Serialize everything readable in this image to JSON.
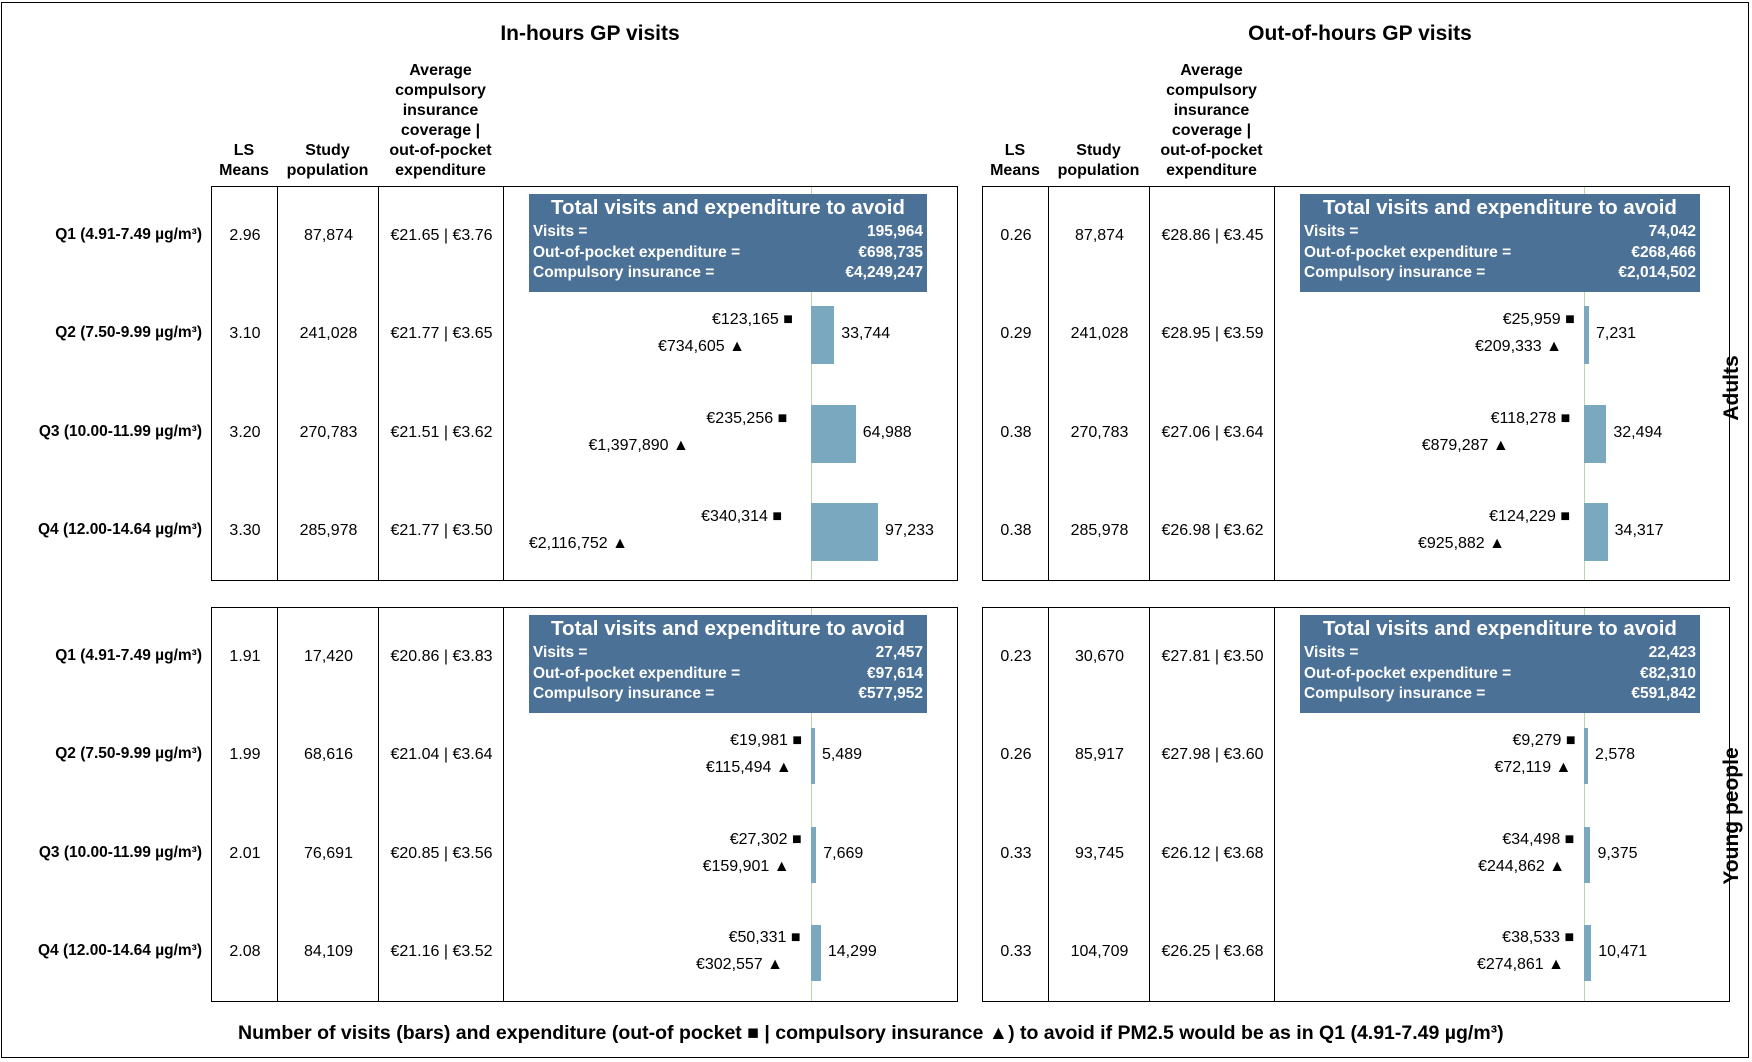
{
  "panels_title": {
    "in_hours": "In-hours GP visits",
    "out_hours": "Out-of-hours GP visits"
  },
  "column_headers": {
    "ls_means": [
      "LS",
      "Means"
    ],
    "study_population": [
      "Study",
      "population"
    ],
    "avg_cost": [
      "Average",
      "compulsory",
      "insurance",
      "coverage |",
      "out-of-pocket",
      "expenditure"
    ]
  },
  "groups": [
    {
      "key": "adults",
      "label": "Adults"
    },
    {
      "key": "young",
      "label": "Young people"
    }
  ],
  "quartiles": [
    "Q1 (4.91-7.49 µg/m³)",
    "Q2 (7.50-9.99 µg/m³)",
    "Q3 (10.00-11.99 µg/m³)",
    "Q4 (12.00-14.64 µg/m³)"
  ],
  "total_box": {
    "heading": "Total visits and expenditure to avoid",
    "visits_label": "Visits =",
    "oop_label": "Out-of-pocket expenditure =",
    "ins_label": "Compulsory insurance ="
  },
  "symbols": {
    "square": "■",
    "triangle": "▲"
  },
  "colors": {
    "bar": "#7aa9bf",
    "box": "#4c7197",
    "zero_line": "#b6d7a8"
  },
  "x_axis_label": "Number of visits (bars) and expenditure (out-of pocket ■ | compulsory insurance ▲) to avoid if PM2.5 would be as in Q1 (4.91-7.49 µg/m³)",
  "chart_data": [
    {
      "type": "bar",
      "panel": "In-hours GP visits",
      "group": "Adults",
      "categories": [
        "Q1 (4.91-7.49 µg/m³)",
        "Q2 (7.50-9.99 µg/m³)",
        "Q3 (10.00-11.99 µg/m³)",
        "Q4 (12.00-14.64 µg/m³)"
      ],
      "ls_means": [
        "2.96",
        "3.10",
        "3.20",
        "3.30"
      ],
      "study_population": [
        "87,874",
        "241,028",
        "270,783",
        "285,978"
      ],
      "avg_cost": [
        "€21.65 | €3.76",
        "€21.77 | €3.65",
        "€21.51 | €3.62",
        "€21.77 | €3.50"
      ],
      "visits_to_avoid": [
        null,
        33744,
        64988,
        97233
      ],
      "visits_labels": [
        "",
        "33,744",
        "64,988",
        "97,233"
      ],
      "out_of_pocket": [
        null,
        123165,
        235256,
        340314
      ],
      "out_of_pocket_labels": [
        "",
        "€123,165",
        "€235,256",
        "€340,314"
      ],
      "compulsory_insurance": [
        null,
        734605,
        1397890,
        2116752
      ],
      "compulsory_insurance_labels": [
        "",
        "€734,605",
        "€1,397,890",
        "€2,116,752"
      ],
      "totals": {
        "visits": "195,964",
        "out_of_pocket": "€698,735",
        "compulsory_insurance": "€4,249,247"
      }
    },
    {
      "type": "bar",
      "panel": "Out-of-hours GP visits",
      "group": "Adults",
      "categories": [
        "Q1 (4.91-7.49 µg/m³)",
        "Q2 (7.50-9.99 µg/m³)",
        "Q3 (10.00-11.99 µg/m³)",
        "Q4 (12.00-14.64 µg/m³)"
      ],
      "ls_means": [
        "0.26",
        "0.29",
        "0.38",
        "0.38"
      ],
      "study_population": [
        "87,874",
        "241,028",
        "270,783",
        "285,978"
      ],
      "avg_cost": [
        "€28.86 | €3.45",
        "€28.95 | €3.59",
        "€27.06 | €3.64",
        "€26.98 | €3.62"
      ],
      "visits_to_avoid": [
        null,
        7231,
        32494,
        34317
      ],
      "visits_labels": [
        "",
        "7,231",
        "32,494",
        "34,317"
      ],
      "out_of_pocket": [
        null,
        25959,
        118278,
        124229
      ],
      "out_of_pocket_labels": [
        "",
        "€25,959",
        "€118,278",
        "€124,229"
      ],
      "compulsory_insurance": [
        null,
        209333,
        879287,
        925882
      ],
      "compulsory_insurance_labels": [
        "",
        "€209,333",
        "€879,287",
        "€925,882"
      ],
      "totals": {
        "visits": "74,042",
        "out_of_pocket": "€268,466",
        "compulsory_insurance": "€2,014,502"
      }
    },
    {
      "type": "bar",
      "panel": "In-hours GP visits",
      "group": "Young people",
      "categories": [
        "Q1 (4.91-7.49 µg/m³)",
        "Q2 (7.50-9.99 µg/m³)",
        "Q3 (10.00-11.99 µg/m³)",
        "Q4 (12.00-14.64 µg/m³)"
      ],
      "ls_means": [
        "1.91",
        "1.99",
        "2.01",
        "2.08"
      ],
      "study_population": [
        "17,420",
        "68,616",
        "76,691",
        "84,109"
      ],
      "avg_cost": [
        "€20.86 | €3.83",
        "€21.04 | €3.64",
        "€20.85 | €3.56",
        "€21.16 | €3.52"
      ],
      "visits_to_avoid": [
        null,
        5489,
        7669,
        14299
      ],
      "visits_labels": [
        "",
        "5,489",
        "7,669",
        "14,299"
      ],
      "out_of_pocket": [
        null,
        19981,
        27302,
        50331
      ],
      "out_of_pocket_labels": [
        "",
        "€19,981",
        "€27,302",
        "€50,331"
      ],
      "compulsory_insurance": [
        null,
        115494,
        159901,
        302557
      ],
      "compulsory_insurance_labels": [
        "",
        "€115,494",
        "€159,901",
        "€302,557"
      ],
      "totals": {
        "visits": "27,457",
        "out_of_pocket": "€97,614",
        "compulsory_insurance": "€577,952"
      }
    },
    {
      "type": "bar",
      "panel": "Out-of-hours GP visits",
      "group": "Young people",
      "categories": [
        "Q1 (4.91-7.49 µg/m³)",
        "Q2 (7.50-9.99 µg/m³)",
        "Q3 (10.00-11.99 µg/m³)",
        "Q4 (12.00-14.64 µg/m³)"
      ],
      "ls_means": [
        "0.23",
        "0.26",
        "0.33",
        "0.33"
      ],
      "study_population": [
        "30,670",
        "85,917",
        "93,745",
        "104,709"
      ],
      "avg_cost": [
        "€27.81 | €3.50",
        "€27.98 | €3.60",
        "€26.12 | €3.68",
        "€26.25 | €3.68"
      ],
      "visits_to_avoid": [
        null,
        2578,
        9375,
        10471
      ],
      "visits_labels": [
        "",
        "2,578",
        "9,375",
        "10,471"
      ],
      "out_of_pocket": [
        null,
        9279,
        34498,
        38533
      ],
      "out_of_pocket_labels": [
        "",
        "€9,279",
        "€34,498",
        "€38,533"
      ],
      "compulsory_insurance": [
        null,
        72119,
        244862,
        274861
      ],
      "compulsory_insurance_labels": [
        "",
        "€72,119",
        "€244,862",
        "€274,861"
      ],
      "totals": {
        "visits": "22,423",
        "out_of_pocket": "€82,310",
        "compulsory_insurance": "€591,842"
      }
    }
  ]
}
